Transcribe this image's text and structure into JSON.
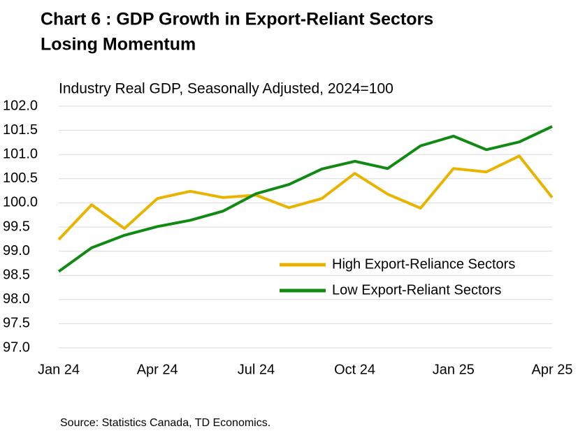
{
  "chart_data": {
    "type": "line",
    "title": [
      "Chart 6 : GDP Growth in Export-Reliant Sectors",
      "Losing Momentum"
    ],
    "subtitle": "Industry Real GDP, Seasonally Adjusted, 2024=100",
    "source": "Source: Statistics Canada, TD Economics.",
    "categories": [
      "Jan 24",
      null,
      null,
      "Apr 24",
      null,
      null,
      "Jul 24",
      null,
      null,
      "Oct 24",
      null,
      null,
      "Jan 25",
      null,
      null,
      "Apr 25"
    ],
    "series": [
      {
        "name": "High Export-Reliance Sectors",
        "color": "#e8b400",
        "values": [
          99.24,
          99.96,
          99.47,
          100.09,
          100.24,
          100.11,
          100.16,
          99.9,
          100.09,
          100.61,
          100.18,
          99.89,
          100.71,
          100.64,
          100.97,
          100.11
        ]
      },
      {
        "name": "Low Export-Reliant Sectors",
        "color": "#118a14",
        "values": [
          98.58,
          99.07,
          99.33,
          99.51,
          99.64,
          99.83,
          100.19,
          100.38,
          100.7,
          100.86,
          100.71,
          101.18,
          101.38,
          101.1,
          101.26,
          101.58
        ]
      }
    ],
    "ylim": [
      97,
      102
    ],
    "yticks": [
      {
        "value": 97,
        "label": "97.0"
      },
      97.5,
      {
        "value": 98,
        "label": "98.0"
      },
      98.5,
      {
        "value": 99,
        "label": "99.0"
      },
      99.5,
      {
        "value": 100,
        "label": "100.0"
      },
      100.5,
      {
        "value": 101,
        "label": "101.0"
      },
      101.5,
      {
        "value": 102,
        "label": "102.0"
      }
    ],
    "grid": true,
    "legend": "lower right"
  }
}
